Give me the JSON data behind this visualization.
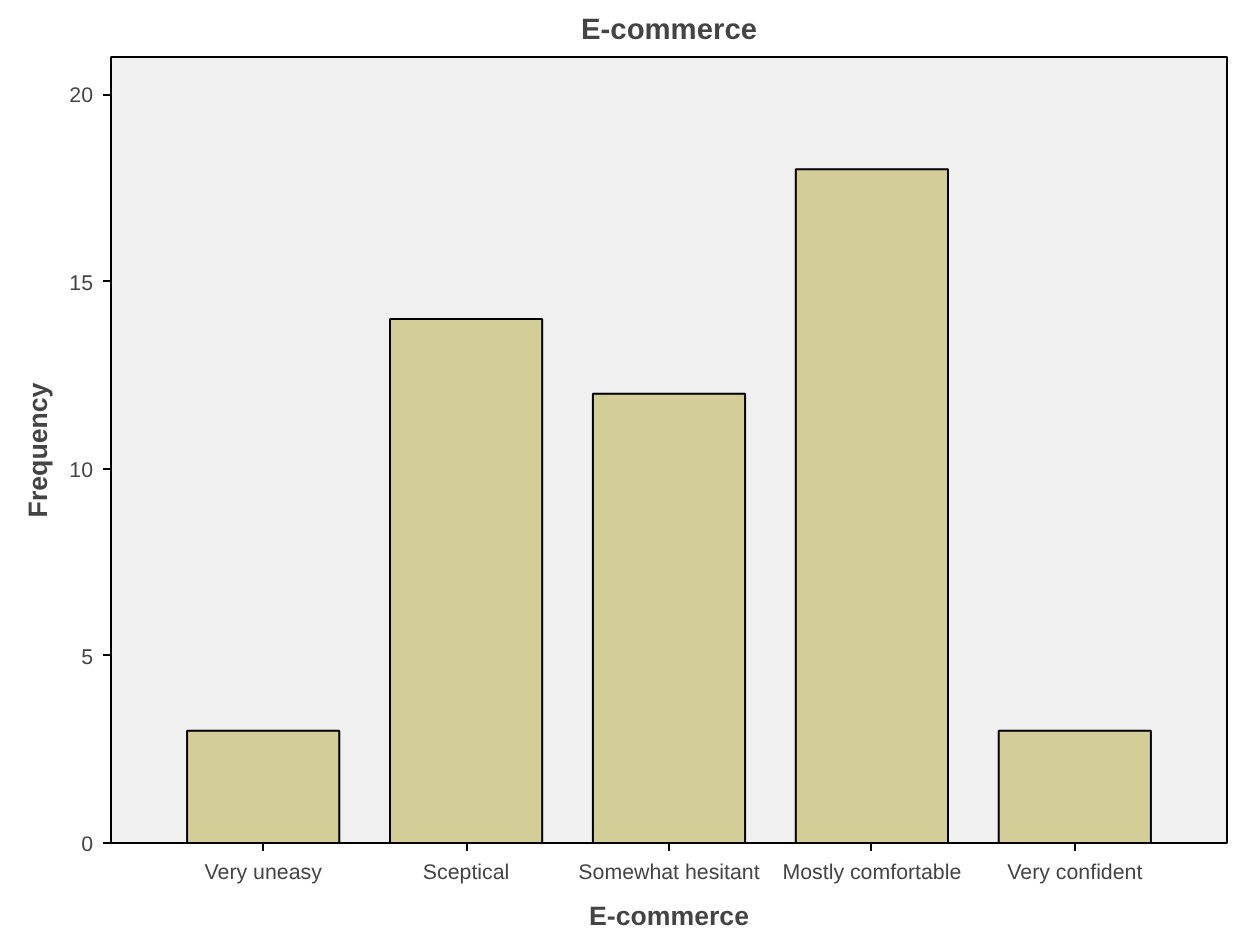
{
  "chart_data": {
    "type": "bar",
    "title": "E-commerce",
    "xlabel": "E-commerce",
    "ylabel": "Frequency",
    "categories": [
      "Very uneasy",
      "Sceptical",
      "Somewhat hesitant",
      "Mostly comfortable",
      "Very confident"
    ],
    "values": [
      3,
      14,
      12,
      18,
      3
    ],
    "color": "#d3ce97",
    "ylim": [
      0,
      21
    ],
    "yticks": [
      0,
      5,
      10,
      15,
      20
    ],
    "grid": false
  }
}
